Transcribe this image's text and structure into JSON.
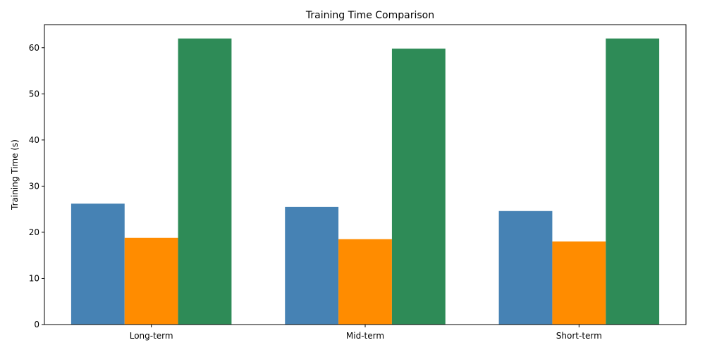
{
  "chart_data": {
    "type": "bar",
    "title": "Training Time Comparison",
    "xlabel": "",
    "ylabel": "Training Time (s)",
    "categories": [
      "Long-term",
      "Mid-term",
      "Short-term"
    ],
    "ylim": [
      0,
      65
    ],
    "yticks": [
      "0",
      "10",
      "20",
      "30",
      "40",
      "50",
      "60"
    ],
    "grid": false,
    "legend": "none",
    "series": [
      {
        "values": [
          26.2,
          25.5,
          24.6
        ],
        "color": "#4682B4"
      },
      {
        "values": [
          18.8,
          18.5,
          18.0
        ],
        "color": "#FF8C00"
      },
      {
        "values": [
          62.0,
          59.8,
          62.0
        ],
        "color": "#2E8B57"
      }
    ]
  }
}
